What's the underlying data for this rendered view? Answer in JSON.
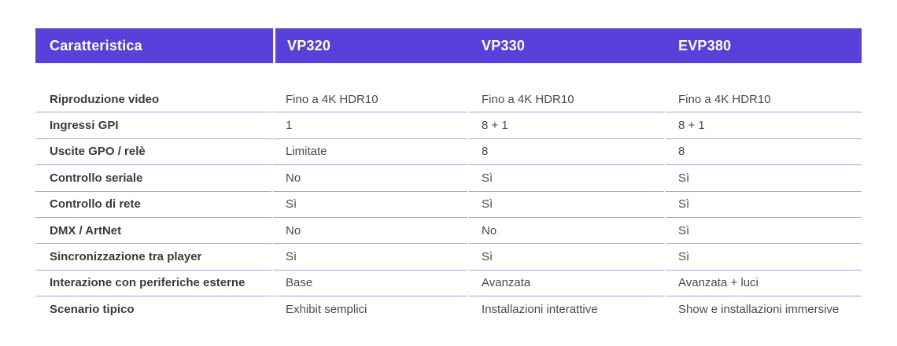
{
  "colors": {
    "header_bg": "#5840db",
    "header_text": "#ffffff",
    "header_divider": "#ffffff",
    "row_divider": "#aca0ea",
    "feature_text": "#3b3b3b",
    "value_text": "#4a4a4a",
    "page_bg": "#ffffff"
  },
  "table": {
    "header": [
      "Caratteristica",
      "VP320",
      "VP330",
      "EVP380"
    ],
    "rows": [
      {
        "feature": "Riproduzione video",
        "values": [
          "Fino a 4K HDR10",
          "Fino a 4K HDR10",
          "Fino a 4K HDR10"
        ]
      },
      {
        "feature": "Ingressi GPI",
        "values": [
          "1",
          "8 + 1",
          "8 + 1"
        ]
      },
      {
        "feature": "Uscite GPO / relè",
        "values": [
          "Limitate",
          "8",
          "8"
        ]
      },
      {
        "feature": "Controllo seriale",
        "values": [
          "No",
          "Sì",
          "Sì"
        ]
      },
      {
        "feature": "Controllo di rete",
        "values": [
          "Sì",
          "Sì",
          "Sì"
        ]
      },
      {
        "feature": "DMX / ArtNet",
        "values": [
          "No",
          "No",
          "Sì"
        ]
      },
      {
        "feature": "Sincronizzazione tra player",
        "values": [
          "Sì",
          "Sì",
          "Sì"
        ]
      },
      {
        "feature": "Interazione con periferiche esterne",
        "values": [
          "Base",
          "Avanzata",
          "Avanzata + luci"
        ]
      },
      {
        "feature": "Scenario tipico",
        "values": [
          "Exhibit semplici",
          "Installazioni interattive",
          "Show e installazioni immersive"
        ]
      }
    ]
  },
  "chart_data": {
    "type": "table",
    "title": "",
    "columns": [
      "Caratteristica",
      "VP320",
      "VP330",
      "EVP380"
    ],
    "rows": [
      [
        "Riproduzione video",
        "Fino a 4K HDR10",
        "Fino a 4K HDR10",
        "Fino a 4K HDR10"
      ],
      [
        "Ingressi GPI",
        "1",
        "8 + 1",
        "8 + 1"
      ],
      [
        "Uscite GPO / relè",
        "Limitate",
        "8",
        "8"
      ],
      [
        "Controllo seriale",
        "No",
        "Sì",
        "Sì"
      ],
      [
        "Controllo di rete",
        "Sì",
        "Sì",
        "Sì"
      ],
      [
        "DMX / ArtNet",
        "No",
        "No",
        "Sì"
      ],
      [
        "Sincronizzazione tra player",
        "Sì",
        "Sì",
        "Sì"
      ],
      [
        "Interazione con periferiche esterne",
        "Base",
        "Avanzata",
        "Avanzata + luci"
      ],
      [
        "Scenario tipico",
        "Exhibit semplici",
        "Installazioni interattive",
        "Show e installazioni immersive"
      ]
    ],
    "layout_hints": {
      "header_background": "#5840db",
      "header_text_color": "#ffffff",
      "row_separator_color": "#aca0ea",
      "first_column_bold": true
    }
  }
}
